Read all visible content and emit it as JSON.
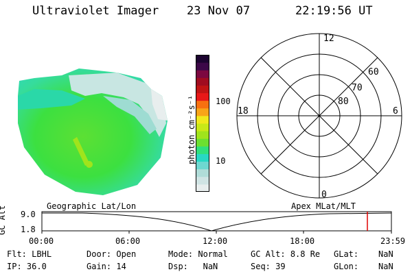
{
  "header": {
    "instrument": "Ultraviolet Imager",
    "date": "23 Nov 07",
    "time": "22:19:56 UT"
  },
  "colors": {
    "scale": [
      "#e8eeee",
      "#d0e4e4",
      "#b0dcd8",
      "#6ed8d0",
      "#28d8c4",
      "#30e07c",
      "#6ce030",
      "#a0e41c",
      "#c8e818",
      "#f0e81c",
      "#f8a418",
      "#f87010",
      "#e81818",
      "#c01414",
      "#a00c20",
      "#7c0840",
      "#3c0848",
      "#1c0430"
    ]
  },
  "colorbar": {
    "unit_label": "photon cm⁻²s⁻¹",
    "tick_100": "100",
    "tick_10": "10"
  },
  "polar": {
    "mlt_top": "12",
    "mlt_left": "18",
    "mlt_right": "6",
    "mlt_bottom": "0",
    "lat_60": "60",
    "lat_70": "70",
    "lat_80": "80"
  },
  "timeline": {
    "left_label": "Geographic Lat/Lon",
    "right_label": "Apex MLat/MLT",
    "axis_title": "GC Alt",
    "y_top": "9.0",
    "y_bottom": "1.8",
    "ticks": [
      "00:00",
      "06:00",
      "12:00",
      "18:00",
      "23:59"
    ]
  },
  "info": {
    "row1": [
      {
        "key": "Flt:",
        "value": "LBHL"
      },
      {
        "key": "Door:",
        "value": "Open"
      },
      {
        "key": "Mode:",
        "value": "Normal"
      },
      {
        "key": "GC Alt:",
        "value": "8.8 Re"
      },
      {
        "key": "GLat:",
        "value": "NaN"
      }
    ],
    "row2": [
      {
        "key": "IP:",
        "value": "36.0"
      },
      {
        "key": "Gain:",
        "value": "14"
      },
      {
        "key": "Dsp:",
        "value": "NaN"
      },
      {
        "key": "Seq:",
        "value": "39"
      },
      {
        "key": "GLon:",
        "value": "NaN"
      }
    ]
  }
}
